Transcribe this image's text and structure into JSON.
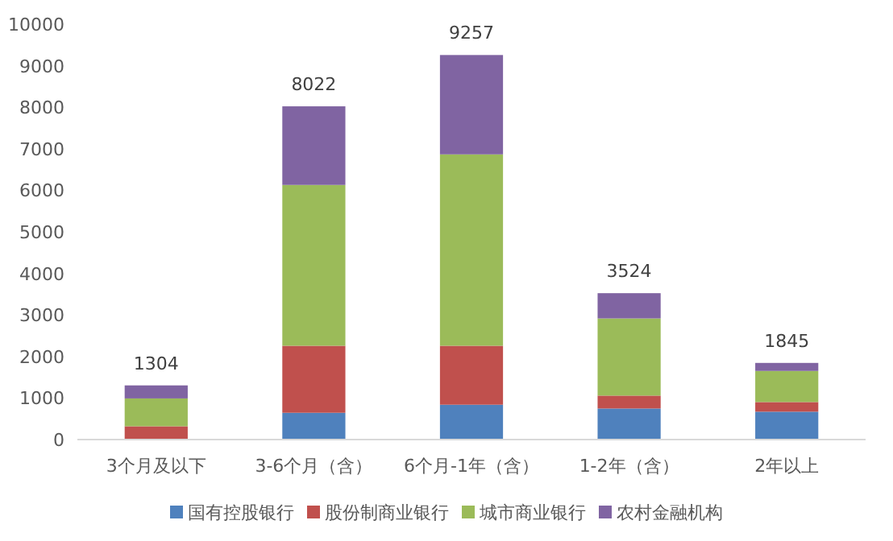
{
  "chart_data": {
    "type": "bar",
    "stacked": true,
    "categories": [
      "3个月及以下",
      "3-6个月（含）",
      "6个月-1年（含）",
      "1-2年（含）",
      "2年以上"
    ],
    "series": [
      {
        "name": "国有控股银行",
        "color": "#4f81bd",
        "values": [
          0,
          645,
          839,
          748,
          671
        ]
      },
      {
        "name": "股份制商业银行",
        "color": "#c0504d",
        "values": [
          320,
          1613,
          1419,
          310,
          232
        ]
      },
      {
        "name": "城市商业银行",
        "color": "#9bbb59",
        "values": [
          670,
          3871,
          4607,
          1858,
          749
        ]
      },
      {
        "name": "农村金融机构",
        "color": "#8064a2",
        "values": [
          314,
          1893,
          2392,
          608,
          193
        ]
      }
    ],
    "totals": [
      "1304",
      "8022",
      "9257",
      "3524",
      "1845"
    ],
    "ylim": [
      0,
      10000
    ],
    "yticks": [
      0,
      1000,
      2000,
      3000,
      4000,
      5000,
      6000,
      7000,
      8000,
      9000,
      10000
    ],
    "grid": false,
    "legend": "bottom"
  }
}
